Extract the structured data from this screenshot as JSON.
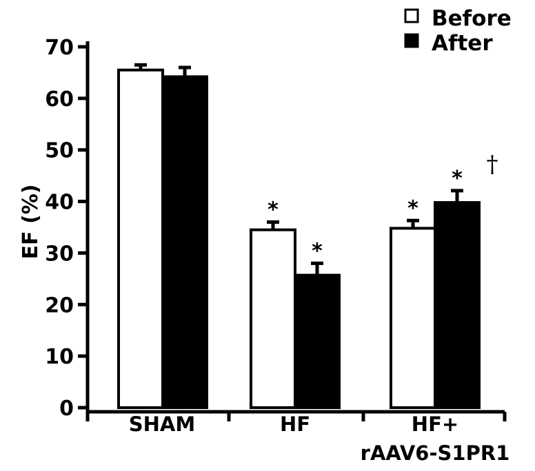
{
  "chart_data": {
    "type": "bar",
    "title": "",
    "xlabel": "",
    "ylabel": "EF (%)",
    "ylim": [
      0,
      70
    ],
    "yticks": [
      0,
      10,
      20,
      30,
      40,
      50,
      60,
      70
    ],
    "categories": [
      {
        "lines": [
          "SHAM"
        ]
      },
      {
        "lines": [
          "HF"
        ]
      },
      {
        "lines": [
          "HF+",
          "rAAV6-S1PR1"
        ]
      }
    ],
    "series": [
      {
        "name": "Before",
        "fill": "#ffffff",
        "values": [
          65.5,
          34.5,
          34.8
        ],
        "errors": [
          1.0,
          1.5,
          1.5
        ]
      },
      {
        "name": "After",
        "fill": "#000000",
        "values": [
          64.2,
          25.7,
          39.8
        ],
        "errors": [
          1.8,
          2.3,
          2.3
        ]
      }
    ],
    "annotations": [
      {
        "series": 0,
        "category": 1,
        "text": "*"
      },
      {
        "series": 1,
        "category": 1,
        "text": "*"
      },
      {
        "series": 0,
        "category": 2,
        "text": "*"
      },
      {
        "series": 1,
        "category": 2,
        "text": "*"
      },
      {
        "series": 1,
        "category": 2,
        "text": "†",
        "offset": "right"
      }
    ],
    "legend": {
      "position": "top-right"
    },
    "grid": false
  }
}
